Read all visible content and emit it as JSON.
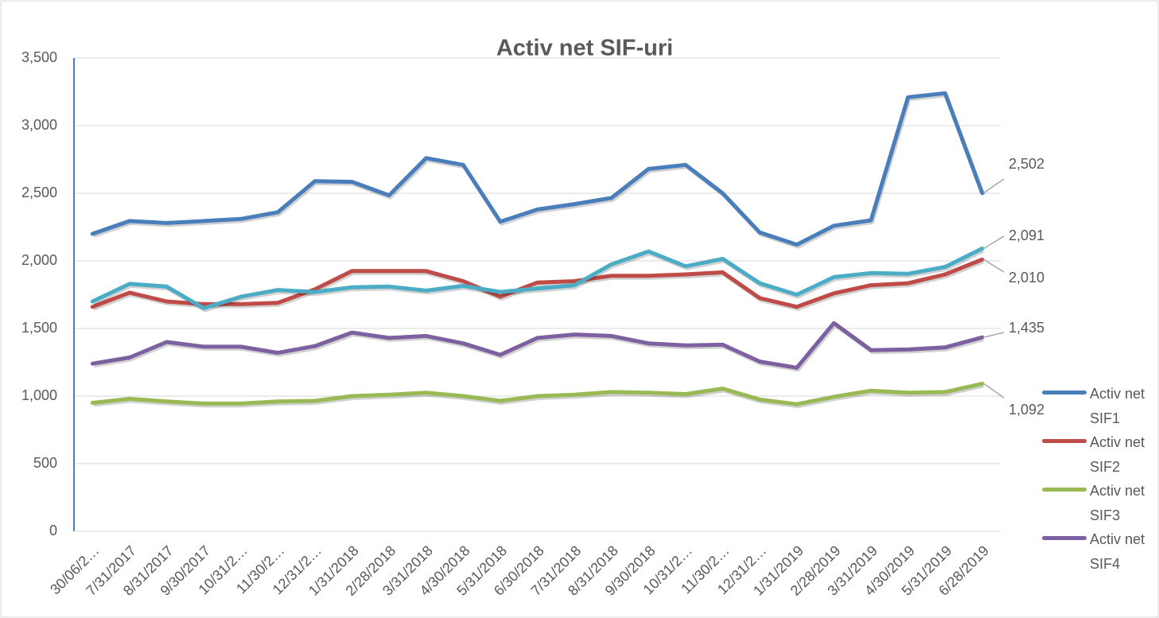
{
  "chart_data": {
    "type": "line",
    "title": "Activ net SIF-uri",
    "categories": [
      "30/06/2…",
      "7/31/2017",
      "8/31/2017",
      "9/30/2017",
      "10/31/2…",
      "11/30/2…",
      "12/31/2…",
      "1/31/2018",
      "2/28/2018",
      "3/31/2018",
      "4/30/2018",
      "5/31/2018",
      "6/30/2018",
      "7/31/2018",
      "8/31/2018",
      "9/30/2018",
      "10/31/2…",
      "11/30/2…",
      "12/31/2…",
      "1/31/2019",
      "2/28/2019",
      "3/31/2019",
      "4/30/2019",
      "5/31/2019",
      "6/28/2019"
    ],
    "series": [
      {
        "name": "Activ net SIF1",
        "color": "#4a7ebb",
        "values": [
          2200,
          2295,
          2280,
          2295,
          2310,
          2360,
          2590,
          2585,
          2485,
          2760,
          2710,
          2290,
          2380,
          2420,
          2465,
          2680,
          2710,
          2500,
          2210,
          2120,
          2260,
          2300,
          3210,
          3240,
          2502
        ],
        "value_labels": [
          null,
          null,
          null,
          null,
          null,
          null,
          null,
          null,
          null,
          null,
          null,
          null,
          null,
          null,
          null,
          null,
          null,
          null,
          null,
          null,
          null,
          null,
          null,
          null,
          "2,502"
        ]
      },
      {
        "name": "Activ net SIF2",
        "color": "#be4b48",
        "values": [
          1660,
          1765,
          1700,
          1680,
          1680,
          1690,
          1790,
          1925,
          1925,
          1925,
          1850,
          1735,
          1840,
          1850,
          1890,
          1890,
          1900,
          1915,
          1725,
          1660,
          1760,
          1820,
          1835,
          1900,
          2010
        ],
        "value_labels": [
          null,
          null,
          null,
          null,
          null,
          null,
          null,
          null,
          null,
          null,
          null,
          null,
          null,
          null,
          null,
          null,
          null,
          null,
          null,
          null,
          null,
          null,
          null,
          null,
          "2,010"
        ]
      },
      {
        "name": "Activ net SIF3",
        "color": "#98b954",
        "values": [
          950,
          980,
          960,
          945,
          945,
          960,
          965,
          1000,
          1010,
          1025,
          1000,
          965,
          1000,
          1010,
          1030,
          1025,
          1015,
          1055,
          975,
          940,
          995,
          1040,
          1025,
          1030,
          1092
        ],
        "value_labels": [
          null,
          null,
          null,
          null,
          null,
          null,
          null,
          null,
          null,
          null,
          null,
          null,
          null,
          null,
          null,
          null,
          null,
          null,
          null,
          null,
          null,
          null,
          null,
          null,
          "1,092"
        ]
      },
      {
        "name": "Activ net SIF4",
        "color": "#7d60a0",
        "values": [
          1240,
          1285,
          1400,
          1365,
          1365,
          1320,
          1370,
          1470,
          1430,
          1445,
          1390,
          1305,
          1430,
          1455,
          1445,
          1390,
          1375,
          1380,
          1255,
          1210,
          1540,
          1340,
          1345,
          1360,
          1435
        ],
        "value_labels": [
          null,
          null,
          null,
          null,
          null,
          null,
          null,
          null,
          null,
          null,
          null,
          null,
          null,
          null,
          null,
          null,
          null,
          null,
          null,
          null,
          null,
          null,
          null,
          null,
          "1,435"
        ]
      },
      {
        "color": "#4bacc6",
        "values": [
          1700,
          1830,
          1810,
          1650,
          1735,
          1785,
          1770,
          1805,
          1810,
          1780,
          1815,
          1770,
          1795,
          1820,
          1975,
          2070,
          1960,
          2015,
          1835,
          1750,
          1880,
          1910,
          1905,
          1955,
          2091
        ],
        "value_labels": [
          null,
          null,
          null,
          null,
          null,
          null,
          null,
          null,
          null,
          null,
          null,
          null,
          null,
          null,
          null,
          null,
          null,
          null,
          null,
          null,
          null,
          null,
          null,
          null,
          "2,091"
        ]
      }
    ],
    "ylim": [
      0,
      3500
    ],
    "yticks": [
      0,
      500,
      {
        "value": 1000,
        "label": "1,000"
      },
      {
        "value": 1500,
        "label": "1,500"
      },
      {
        "value": 2000,
        "label": "2,000"
      },
      {
        "value": 2500,
        "label": "2,500"
      },
      {
        "value": 3000,
        "label": "3,000"
      },
      {
        "value": 3500,
        "label": "3,500"
      }
    ],
    "grid": true,
    "legend": "right"
  }
}
